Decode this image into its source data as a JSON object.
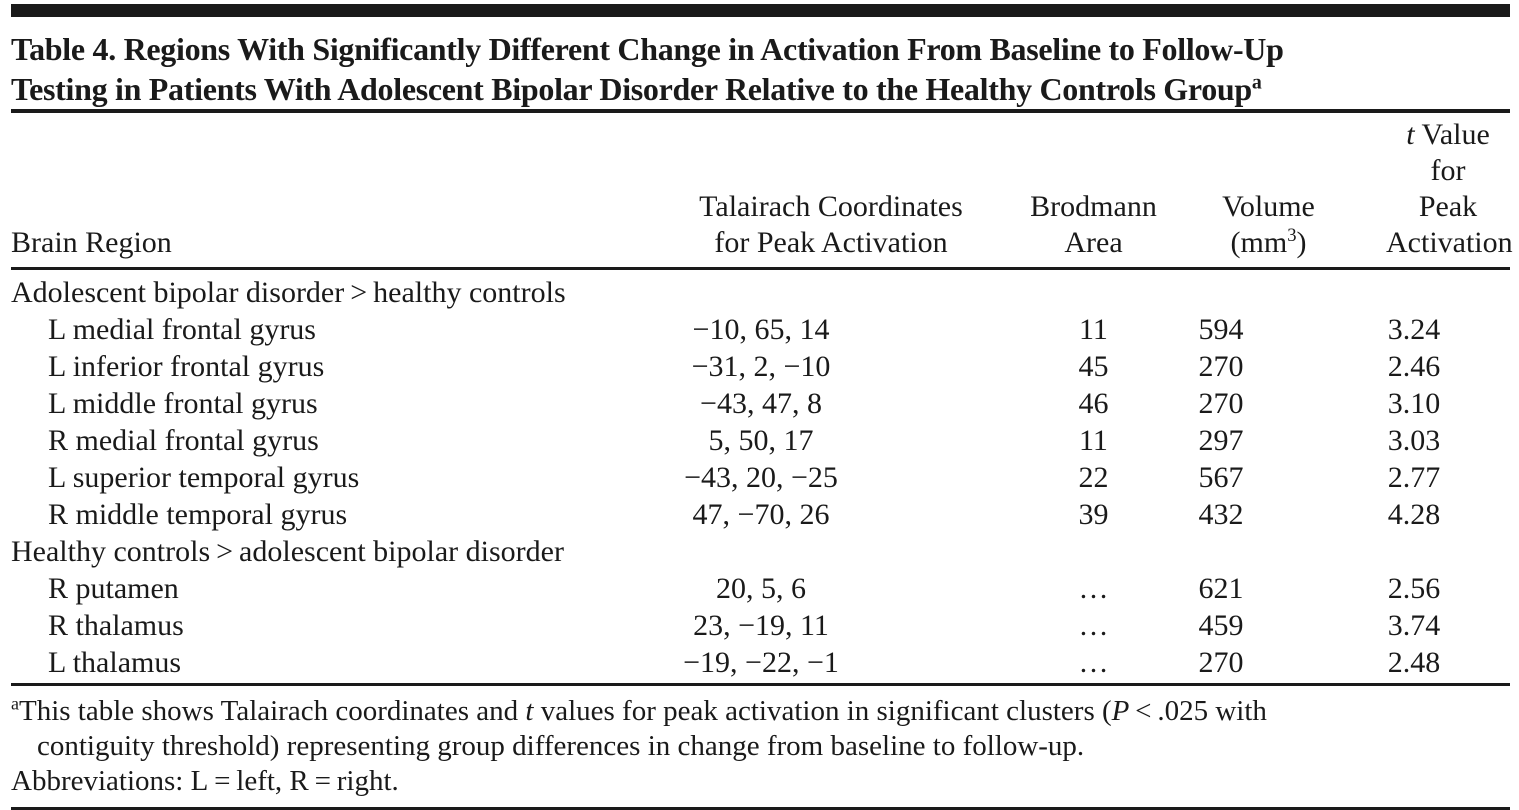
{
  "page": {
    "background": "#ffffff",
    "text_color": "#1a1a1a",
    "rule_color": "#1a1a1a"
  },
  "title": {
    "line1": "Table 4. Regions With Significantly Different Change in Activation From Baseline to Follow-Up",
    "line2": "Testing in Patients With Adolescent Bipolar Disorder Relative to the Healthy Controls Group",
    "footnote_marker": "a"
  },
  "table": {
    "columns": {
      "brain_region": "Brain Region",
      "talairach_line1": "Talairach Coordinates",
      "talairach_line2": "for Peak Activation",
      "brodmann_line1": "Brodmann",
      "brodmann_line2": "Area",
      "volume_line1": "Volume",
      "volume_unit_open": "(mm",
      "volume_unit_sup": "3",
      "volume_unit_close": ")",
      "tvalue_italic": "t",
      "tvalue_line1_rest": " Value for",
      "tvalue_line2": "Peak Activation"
    },
    "sections": [
      {
        "header": "Adolescent bipolar disorder > healthy controls",
        "rows": [
          {
            "region": "L medial frontal gyrus",
            "coordinates": "−10, 65, 14",
            "brodmann": "11",
            "volume": "594",
            "t_value": "3.24"
          },
          {
            "region": "L inferior frontal gyrus",
            "coordinates": "−31, 2, −10",
            "brodmann": "45",
            "volume": "270",
            "t_value": "2.46"
          },
          {
            "region": "L middle frontal gyrus",
            "coordinates": "−43, 47, 8",
            "brodmann": "46",
            "volume": "270",
            "t_value": "3.10"
          },
          {
            "region": "R medial frontal gyrus",
            "coordinates": "5, 50, 17",
            "brodmann": "11",
            "volume": "297",
            "t_value": "3.03"
          },
          {
            "region": "L superior temporal gyrus",
            "coordinates": "−43, 20, −25",
            "brodmann": "22",
            "volume": "567",
            "t_value": "2.77"
          },
          {
            "region": "R middle temporal gyrus",
            "coordinates": "47, −70, 26",
            "brodmann": "39",
            "volume": "432",
            "t_value": "4.28"
          }
        ]
      },
      {
        "header": "Healthy controls > adolescent bipolar disorder",
        "rows": [
          {
            "region": "R putamen",
            "coordinates": "20, 5, 6",
            "brodmann": "…",
            "volume": "621",
            "t_value": "2.56"
          },
          {
            "region": "R thalamus",
            "coordinates": "23, −19, 11",
            "brodmann": "…",
            "volume": "459",
            "t_value": "3.74"
          },
          {
            "region": "L thalamus",
            "coordinates": "−19, −22, −1",
            "brodmann": "…",
            "volume": "270",
            "t_value": "2.48"
          }
        ]
      }
    ]
  },
  "footnotes": {
    "marker": "a",
    "note_part1": "This table shows Talairach coordinates and ",
    "note_italic1": "t",
    "note_part2": " values for peak activation in significant clusters (",
    "note_italic2": "P",
    "note_part3": " < .025 with",
    "note_line2": "contiguity threshold) representing group differences in change from baseline to follow-up.",
    "abbreviations": "Abbreviations: L = left, R = right."
  }
}
